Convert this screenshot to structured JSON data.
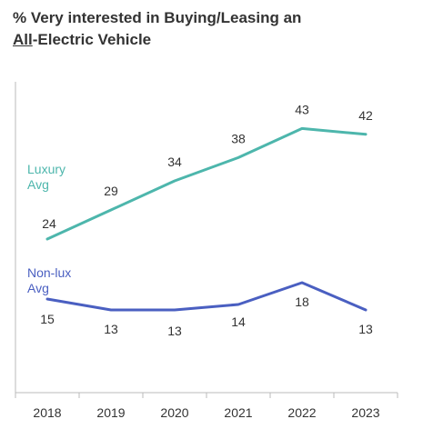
{
  "title": {
    "line1": "% Very interested in Buying/Leasing an",
    "line2_underlined": "All",
    "line2_rest": "-Electric Vehicle"
  },
  "colors": {
    "luxury": "#4db6ac",
    "nonlux": "#4a5fc1",
    "axis": "#bbbbbb",
    "text": "#333333"
  },
  "chart_data": {
    "type": "line",
    "title": "% Very interested in Buying/Leasing an All-Electric Vehicle",
    "categories": [
      "2018",
      "2019",
      "2020",
      "2021",
      "2022",
      "2023"
    ],
    "series": [
      {
        "name": "Luxury Avg",
        "label_lines": [
          "Luxury",
          "Avg"
        ],
        "values": [
          24,
          29,
          34,
          38,
          43,
          42
        ]
      },
      {
        "name": "Non-lux Avg",
        "label_lines": [
          "Non-lux",
          "Avg"
        ],
        "values": [
          15,
          13,
          13,
          14,
          18,
          13
        ]
      }
    ],
    "grid": false,
    "legend": "inline-left"
  }
}
